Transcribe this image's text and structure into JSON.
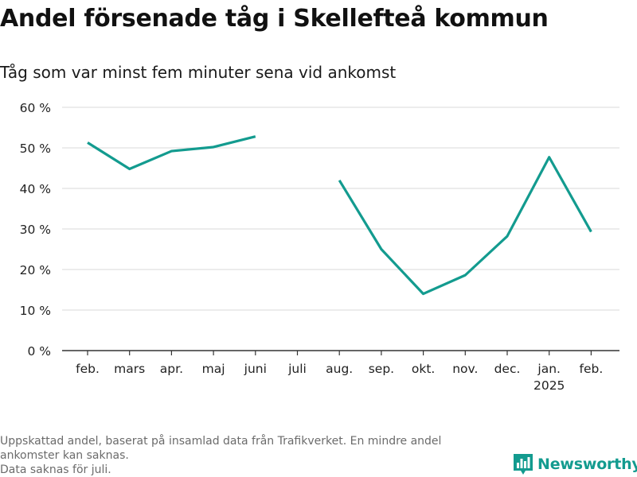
{
  "title": "Andel försenade tåg i Skellefteå kommun",
  "subtitle": "Tåg som var minst fem minuter sena vid ankomst",
  "footnote": {
    "line1": "Uppskattad andel, baserat på insamlad data från Trafikverket. En mindre andel",
    "line2": "ankomster kan saknas.",
    "line3": "Data saknas för juli."
  },
  "brand": {
    "name": "Newsworthy",
    "icon": "bar-chart-logo-icon",
    "color": "#139b8f"
  },
  "chart_data": {
    "type": "line",
    "title": "Andel försenade tåg i Skellefteå kommun",
    "subtitle": "Tåg som var minst fem minuter sena vid ankomst",
    "xlabel": "",
    "ylabel": "",
    "categories": [
      "feb.",
      "mars",
      "apr.",
      "maj",
      "juni",
      "juli",
      "aug.",
      "sep.",
      "okt.",
      "nov.",
      "dec.",
      "jan.",
      "feb."
    ],
    "year_labels": [
      "",
      "",
      "",
      "",
      "",
      "",
      "",
      "",
      "",
      "",
      "",
      "2025",
      ""
    ],
    "series": [
      {
        "name": "Andel försenade",
        "color": "#139b8f",
        "values": [
          51.3,
          44.8,
          49.2,
          50.2,
          52.8,
          null,
          42.0,
          25.0,
          14.0,
          18.6,
          28.2,
          47.7,
          29.3
        ]
      }
    ],
    "ylim": [
      0,
      60
    ],
    "yticks": [
      0,
      10,
      20,
      30,
      40,
      50,
      60
    ],
    "yticklabels": [
      "0 %",
      "10 %",
      "20 %",
      "30 %",
      "40 %",
      "50 %",
      "60 %"
    ],
    "grid": true
  }
}
